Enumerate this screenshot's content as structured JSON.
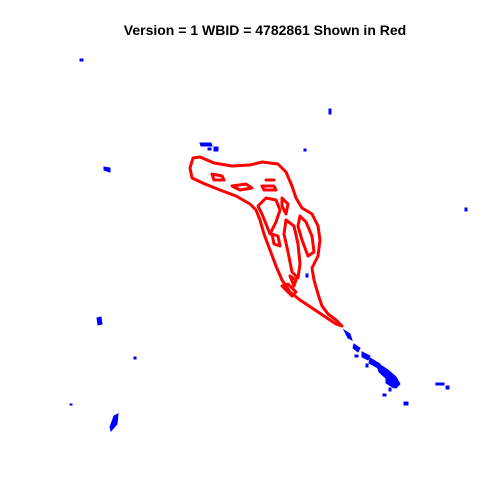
{
  "title": "Version = 1 WBID = 4782861 Shown in Red",
  "colors": {
    "highlight": "#ff0000",
    "other_water": "#0000ff",
    "background": "#ffffff"
  }
}
